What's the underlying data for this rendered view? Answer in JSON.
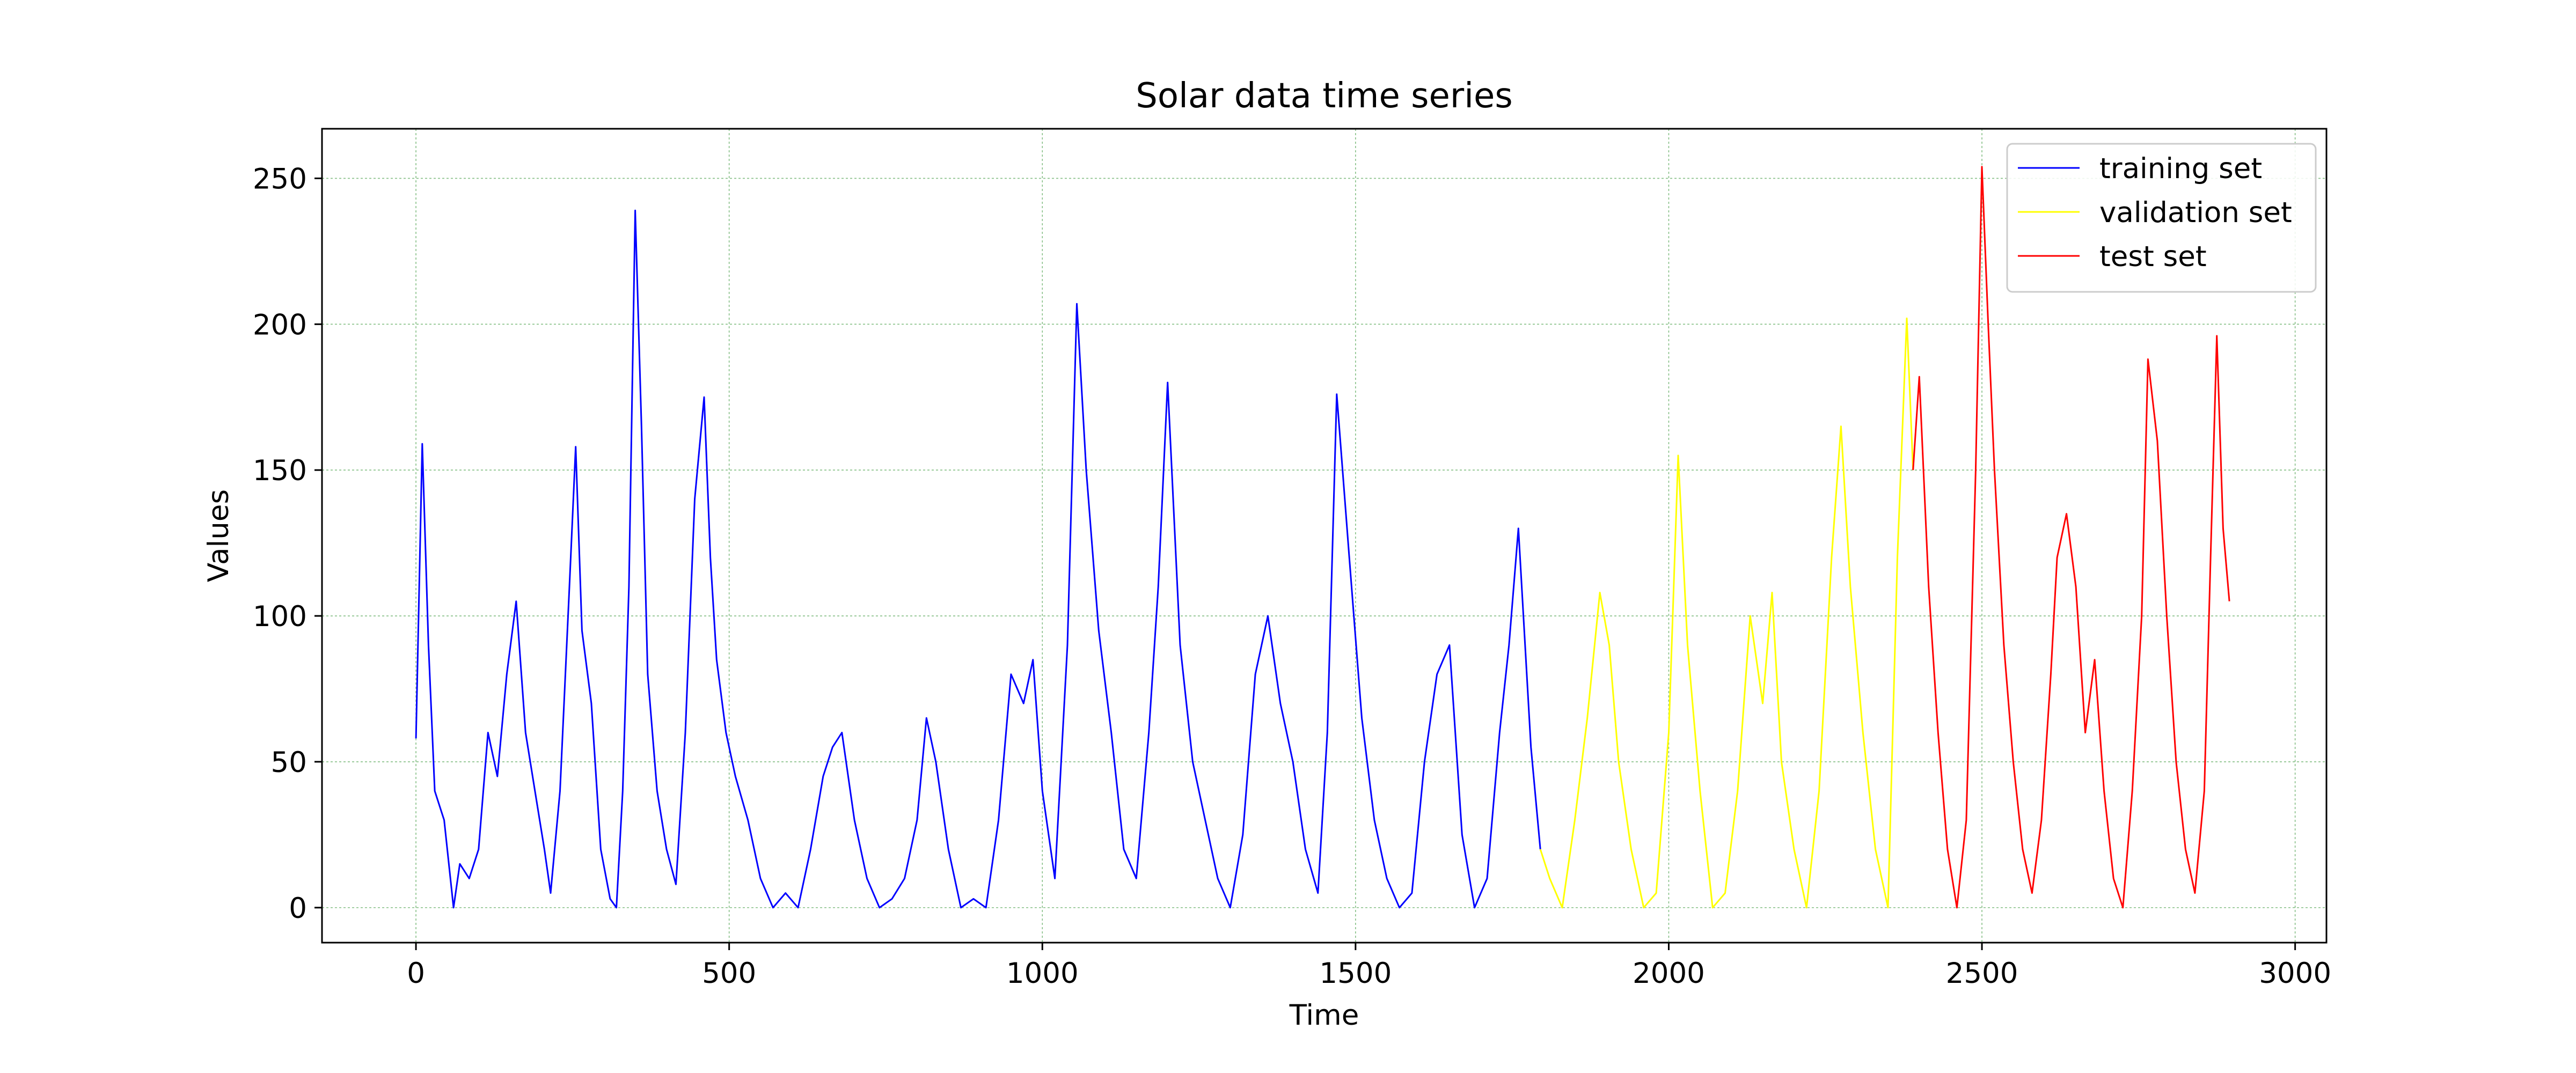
{
  "chart_data": {
    "type": "line",
    "title": "Solar data time series",
    "xlabel": "Time",
    "ylabel": "Values",
    "xlim": [
      -150,
      3050
    ],
    "ylim": [
      -12,
      267
    ],
    "xticks": [
      0,
      500,
      1000,
      1500,
      2000,
      2500,
      3000
    ],
    "yticks": [
      0,
      50,
      100,
      150,
      200,
      250
    ],
    "grid": true,
    "grid_color": "#228B22",
    "legend_position": "top-right",
    "series": [
      {
        "name": "training set",
        "color": "#0000ff",
        "x": [
          0,
          10,
          20,
          30,
          45,
          60,
          70,
          85,
          100,
          115,
          130,
          145,
          160,
          175,
          190,
          205,
          215,
          230,
          245,
          255,
          265,
          280,
          295,
          310,
          320,
          330,
          340,
          350,
          360,
          370,
          385,
          400,
          415,
          430,
          445,
          460,
          470,
          480,
          495,
          510,
          530,
          550,
          570,
          590,
          610,
          630,
          650,
          665,
          680,
          700,
          720,
          740,
          760,
          780,
          800,
          815,
          830,
          850,
          870,
          890,
          910,
          930,
          950,
          970,
          985,
          1000,
          1020,
          1040,
          1055,
          1070,
          1090,
          1110,
          1130,
          1150,
          1170,
          1185,
          1200,
          1220,
          1240,
          1260,
          1280,
          1300,
          1320,
          1340,
          1360,
          1380,
          1400,
          1420,
          1440,
          1455,
          1470,
          1490,
          1510,
          1530,
          1550,
          1570,
          1590,
          1610,
          1630,
          1650,
          1670,
          1690,
          1710,
          1730,
          1745,
          1760,
          1780,
          1795
        ],
        "y": [
          58,
          159,
          90,
          40,
          30,
          0,
          15,
          10,
          20,
          60,
          45,
          80,
          105,
          60,
          40,
          20,
          5,
          40,
          110,
          158,
          95,
          70,
          20,
          3,
          0,
          40,
          110,
          239,
          165,
          80,
          40,
          20,
          8,
          60,
          140,
          175,
          120,
          85,
          60,
          45,
          30,
          10,
          0,
          5,
          0,
          20,
          45,
          55,
          60,
          30,
          10,
          0,
          3,
          10,
          30,
          65,
          50,
          20,
          0,
          3,
          0,
          30,
          80,
          70,
          85,
          40,
          10,
          90,
          207,
          150,
          95,
          60,
          20,
          10,
          60,
          110,
          180,
          90,
          50,
          30,
          10,
          0,
          25,
          80,
          100,
          70,
          50,
          20,
          5,
          60,
          176,
          120,
          65,
          30,
          10,
          0,
          5,
          50,
          80,
          90,
          25,
          0,
          10,
          60,
          90,
          130,
          55,
          20
        ]
      },
      {
        "name": "validation set",
        "color": "#ffff00",
        "x": [
          1795,
          1810,
          1830,
          1850,
          1870,
          1890,
          1905,
          1920,
          1940,
          1960,
          1980,
          2000,
          2015,
          2030,
          2050,
          2070,
          2090,
          2110,
          2130,
          2150,
          2165,
          2180,
          2200,
          2220,
          2240,
          2260,
          2275,
          2290,
          2310,
          2330,
          2350,
          2365,
          2380,
          2390
        ],
        "y": [
          20,
          10,
          0,
          30,
          65,
          108,
          90,
          50,
          20,
          0,
          5,
          60,
          155,
          90,
          40,
          0,
          5,
          40,
          100,
          70,
          108,
          50,
          20,
          0,
          40,
          120,
          165,
          110,
          60,
          20,
          0,
          120,
          202,
          150
        ]
      },
      {
        "name": "test set",
        "color": "#ff0000",
        "x": [
          2390,
          2400,
          2415,
          2430,
          2445,
          2460,
          2475,
          2490,
          2500,
          2510,
          2520,
          2535,
          2550,
          2565,
          2580,
          2595,
          2610,
          2620,
          2635,
          2650,
          2665,
          2680,
          2695,
          2710,
          2725,
          2740,
          2755,
          2765,
          2780,
          2795,
          2810,
          2825,
          2840,
          2855,
          2865,
          2875,
          2885,
          2895
        ],
        "y": [
          150,
          182,
          110,
          60,
          20,
          0,
          30,
          150,
          254,
          200,
          150,
          90,
          50,
          20,
          5,
          30,
          80,
          120,
          135,
          110,
          60,
          85,
          40,
          10,
          0,
          40,
          100,
          188,
          160,
          100,
          50,
          20,
          5,
          40,
          120,
          196,
          130,
          105
        ]
      }
    ]
  }
}
